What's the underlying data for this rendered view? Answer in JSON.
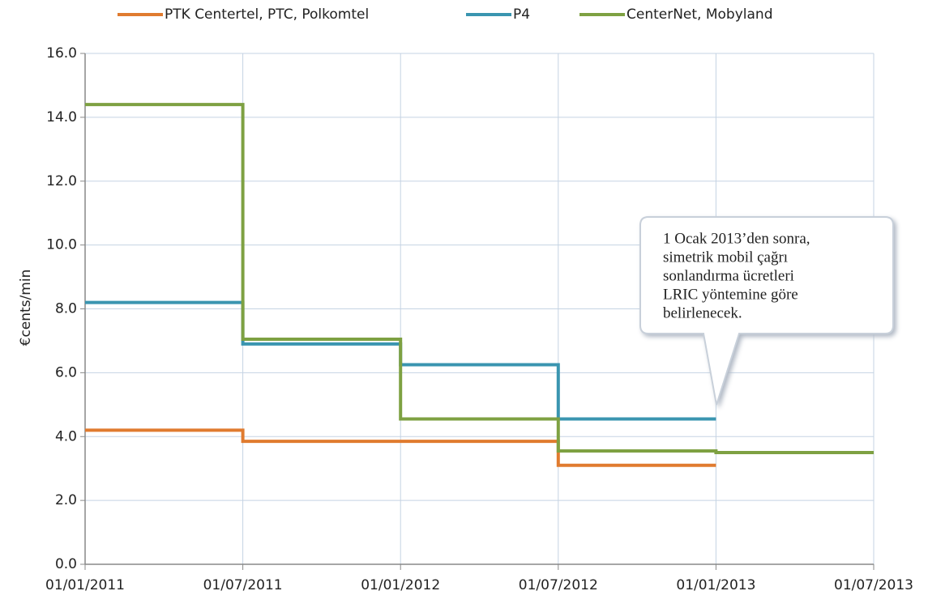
{
  "chart_data": {
    "type": "line",
    "step": "post",
    "x": [
      "01/01/2011",
      "01/07/2011",
      "01/01/2012",
      "01/07/2012",
      "01/01/2013",
      "01/07/2013"
    ],
    "series": [
      {
        "name": "PTK Centertel, PTC, Polkomtel",
        "color": "#e07b2f",
        "values": [
          4.2,
          3.85,
          3.85,
          3.1,
          3.1,
          null
        ]
      },
      {
        "name": "P4",
        "color": "#3a95b0",
        "values": [
          8.2,
          6.9,
          6.25,
          4.55,
          4.55,
          null
        ]
      },
      {
        "name": "CenterNet, Mobyland",
        "color": "#7ea142",
        "values": [
          14.4,
          7.05,
          4.55,
          3.55,
          3.5,
          3.5
        ]
      }
    ],
    "y_label": "€cents/min",
    "ylim": [
      0,
      16
    ],
    "yticks": [
      {
        "value": 0,
        "label": "0.0"
      },
      {
        "value": 2,
        "label": "2.0"
      },
      {
        "value": 4,
        "label": "4.0"
      },
      {
        "value": 6,
        "label": "6.0"
      },
      {
        "value": 8,
        "label": "8.0"
      },
      {
        "value": 10,
        "label": "10.0"
      },
      {
        "value": 12,
        "label": "12.0"
      },
      {
        "value": 14,
        "label": "14.0"
      },
      {
        "value": 16,
        "label": "16.0"
      }
    ],
    "grid": true,
    "legend": "top",
    "annotation": [
      "1 Ocak 2013’den sonra,",
      "simetrik mobil çağrı",
      "sonlandırma ücretleri",
      "LRIC yöntemine göre",
      "belirlenecek."
    ]
  }
}
